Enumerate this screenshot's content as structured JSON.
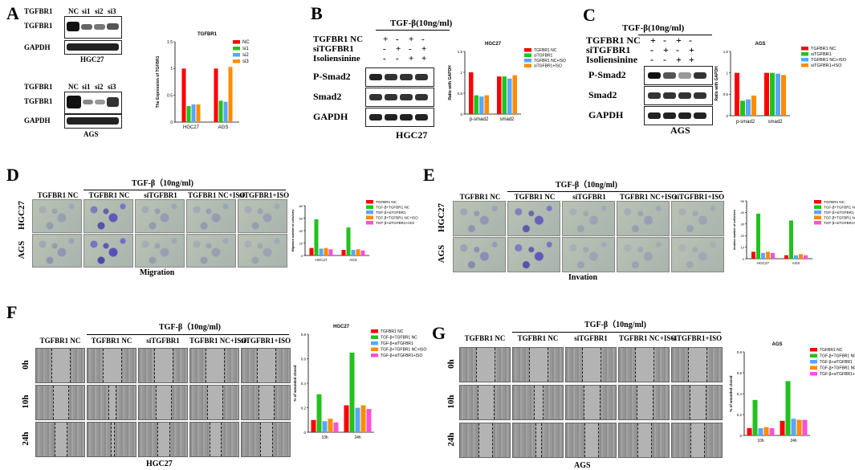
{
  "panelA": {
    "label": "A",
    "top_header": [
      "TGFBR1",
      "NC",
      "si1",
      "si2",
      "si3"
    ],
    "top_rows": [
      "TGFBR1",
      "GAPDH"
    ],
    "top_cell": "HGC27",
    "bottom_header": [
      "TGFBR1",
      "NC",
      "si1",
      "si2",
      "si3"
    ],
    "bottom_rows": [
      "TGFBR1",
      "GAPDH"
    ],
    "bottom_cell": "AGS"
  },
  "panelB": {
    "label": "B",
    "treatment": "TGF-β(10ng/ml)",
    "cond_rows": [
      {
        "label": "TGFBR1 NC",
        "marks": [
          "+",
          "-",
          "+",
          "-"
        ]
      },
      {
        "label": "siTGFBR1",
        "marks": [
          "-",
          "+",
          "-",
          "+"
        ]
      },
      {
        "label": "Isoliensinine",
        "marks": [
          "-",
          "-",
          "+",
          "+"
        ]
      }
    ],
    "blot_rows": [
      "P-Smad2",
      "Smad2",
      "GAPDH"
    ],
    "cell": "HGC27"
  },
  "panelC": {
    "label": "C",
    "treatment": "TGF-β(10ng/ml)",
    "cond_rows": [
      {
        "label": "TGFBR1 NC",
        "marks": [
          "+",
          "-",
          "+",
          "-"
        ]
      },
      {
        "label": "siTGFBR1",
        "marks": [
          "-",
          "+",
          "-",
          "+"
        ]
      },
      {
        "label": "Isoliensinine",
        "marks": [
          "-",
          "-",
          "+",
          "+"
        ]
      }
    ],
    "blot_rows": [
      "P-Smad2",
      "Smad2",
      "GAPDH"
    ],
    "cell": "AGS"
  },
  "panelD": {
    "label": "D",
    "treatment": "TGF-β（10ng/ml)",
    "columns": [
      "TGFBR1 NC",
      "TGFBR1 NC",
      "siTGFBR1",
      "TGFBR1 NC+ISO",
      "siTGFBR1+ISO"
    ],
    "rows": [
      "HGC27",
      "AGS"
    ],
    "caption": "Migration"
  },
  "panelE": {
    "label": "E",
    "treatment": "TGF-β（10ng/ml)",
    "columns": [
      "TGFBR1 NC",
      "TGFBR1 NC",
      "siTGFBR1",
      "TGFBR1 NC+ISO",
      "siTGFBR1+ISO"
    ],
    "rows": [
      "HGC27",
      "AGS"
    ],
    "caption": "Invation"
  },
  "panelF": {
    "label": "F",
    "treatment": "TGF-β（10ng/ml)",
    "columns": [
      "TGFBR1 NC",
      "TGFBR1 NC",
      "siTGFBR1",
      "TGFBR1 NC+ISO",
      "siTGFBR1+ISO"
    ],
    "rows": [
      "0h",
      "10h",
      "24h"
    ],
    "caption": "HGC27"
  },
  "panelG": {
    "label": "G",
    "treatment": "TGF-β（10ng/ml)",
    "columns": [
      "TGFBR1 NC",
      "TGFBR1 NC",
      "siTGFBR1",
      "TGFBR1 NC+ISO",
      "siTGFBR1+ISO"
    ],
    "rows": [
      "0h",
      "10h",
      "24h"
    ],
    "caption": "AGS"
  },
  "chart_data": [
    {
      "id": "A",
      "type": "bar",
      "title": "TGFBR1",
      "ylabel": "The Expression of TGFBR1",
      "xlabel": "",
      "ylim": [
        0,
        1.5
      ],
      "yticks": [
        0,
        0.5,
        1.0,
        1.5
      ],
      "categories": [
        "HGC27",
        "AGS"
      ],
      "series": [
        {
          "name": "NC",
          "color": "#ff0000",
          "values": [
            1.0,
            1.0
          ]
        },
        {
          "name": "si1",
          "color": "#22c21e",
          "values": [
            0.3,
            0.4
          ]
        },
        {
          "name": "si2",
          "color": "#5aa5ff",
          "values": [
            0.33,
            0.38
          ]
        },
        {
          "name": "si3",
          "color": "#ff8c00",
          "values": [
            0.33,
            1.03
          ]
        }
      ],
      "annotations": [
        "***",
        "***",
        "***",
        "***",
        "***"
      ],
      "legend": "top-right"
    },
    {
      "id": "B",
      "type": "bar",
      "title": "HGC27",
      "ylabel": "Ratio with GAPDH",
      "xlabel": "",
      "ylim": [
        0,
        1.5
      ],
      "yticks": [
        0.0,
        0.5,
        1.0,
        1.5
      ],
      "categories": [
        "p-smad2",
        "smad2"
      ],
      "series": [
        {
          "name": "TGFBR1 NC",
          "color": "#ff0000",
          "values": [
            1.0,
            0.9
          ]
        },
        {
          "name": "siTGFBR1",
          "color": "#22c21e",
          "values": [
            0.45,
            0.9
          ]
        },
        {
          "name": "TGFBR1 NC+ISO",
          "color": "#5aa5ff",
          "values": [
            0.42,
            0.85
          ]
        },
        {
          "name": "siTGFBR1+ISO",
          "color": "#ff8c00",
          "values": [
            0.45,
            0.93
          ]
        }
      ],
      "annotations": [
        "***",
        "***",
        "***",
        "ns",
        "ns"
      ],
      "legend": "top-right"
    },
    {
      "id": "C",
      "type": "bar",
      "title": "AGS",
      "ylabel": "Ratio with GAPDH",
      "xlabel": "",
      "ylim": [
        0,
        1.5
      ],
      "yticks": [
        0.0,
        0.5,
        1.0,
        1.5
      ],
      "categories": [
        "p-smad2",
        "smad2"
      ],
      "series": [
        {
          "name": "TGFBR1 NC",
          "color": "#ff0000",
          "values": [
            1.0,
            1.0
          ]
        },
        {
          "name": "siTGFBR1",
          "color": "#22c21e",
          "values": [
            0.35,
            1.0
          ]
        },
        {
          "name": "TGFBR1 NC+ISO",
          "color": "#5aa5ff",
          "values": [
            0.38,
            0.98
          ]
        },
        {
          "name": "siTGFBR1+ISO",
          "color": "#ff8c00",
          "values": [
            0.47,
            0.95
          ]
        }
      ],
      "annotations": [
        "***",
        "***",
        "***",
        "ns"
      ],
      "legend": "top-right"
    },
    {
      "id": "D",
      "type": "bar",
      "title": "",
      "ylabel": "Migration number of cells/view",
      "xlabel": "",
      "ylim": [
        0,
        80
      ],
      "yticks": [
        0,
        20,
        40,
        60,
        80
      ],
      "categories": [
        "HGC27",
        "AGS"
      ],
      "series": [
        {
          "name": "TGFBR1 NC",
          "color": "#ff0000",
          "values": [
            12,
            9
          ]
        },
        {
          "name": "TGF-β+TGFBR1 NC",
          "color": "#22c21e",
          "values": [
            58,
            45
          ]
        },
        {
          "name": "TGF-β+siTGFBR1",
          "color": "#5aa5ff",
          "values": [
            11,
            9
          ]
        },
        {
          "name": "TGF-β+TGFBR1 NC+ISO",
          "color": "#ff8c00",
          "values": [
            12,
            10
          ]
        },
        {
          "name": "TGF-β+siTGFBR1+ISO",
          "color": "#ff4fd8",
          "values": [
            10,
            8
          ]
        }
      ],
      "annotations": [
        "###",
        "###",
        "***",
        "***",
        "***",
        "ns",
        "ns"
      ],
      "legend": "top-right"
    },
    {
      "id": "E",
      "type": "bar",
      "title": "",
      "ylabel": "Invation number of cells/view",
      "xlabel": "",
      "ylim": [
        0,
        50
      ],
      "yticks": [
        0,
        10,
        20,
        30,
        40,
        50
      ],
      "categories": [
        "HGC27",
        "AGS"
      ],
      "series": [
        {
          "name": "TGFBR1 NC",
          "color": "#ff0000",
          "values": [
            6,
            3
          ]
        },
        {
          "name": "TGF-β+TGFBR1 NC",
          "color": "#22c21e",
          "values": [
            39,
            33
          ]
        },
        {
          "name": "TGF-β+siTGFBR1",
          "color": "#5aa5ff",
          "values": [
            5,
            3
          ]
        },
        {
          "name": "TGF-β+TGFBR1 NC+ISO",
          "color": "#ff8c00",
          "values": [
            6,
            4
          ]
        },
        {
          "name": "TGF-β+siTGFBR1+ISO",
          "color": "#ff4fd8",
          "values": [
            5,
            3
          ]
        }
      ],
      "annotations": [
        "###",
        "###",
        "***",
        "***",
        "***",
        "ns",
        "ns"
      ],
      "legend": "top-right"
    },
    {
      "id": "F",
      "type": "bar",
      "title": "HGC27",
      "ylabel": "% of wounded closed",
      "xlabel": "",
      "ylim": [
        0,
        0.8
      ],
      "yticks": [
        0.0,
        0.2,
        0.4,
        0.6,
        0.8
      ],
      "categories": [
        "10h",
        "24h"
      ],
      "series": [
        {
          "name": "TGFBR1 NC",
          "color": "#ff0000",
          "values": [
            0.1,
            0.22
          ]
        },
        {
          "name": "TGF-β+TGFBR1 NC",
          "color": "#22c21e",
          "values": [
            0.31,
            0.65
          ]
        },
        {
          "name": "TGF-β+siTGFBR1",
          "color": "#5aa5ff",
          "values": [
            0.09,
            0.2
          ]
        },
        {
          "name": "TGF-β+TGFBR1 NC+ISO",
          "color": "#ff8c00",
          "values": [
            0.11,
            0.22
          ]
        },
        {
          "name": "TGF-β+siTGFBR1+ISO",
          "color": "#ff4fd8",
          "values": [
            0.08,
            0.19
          ]
        }
      ],
      "annotations": [
        "###",
        "###",
        "***",
        "***",
        "***",
        "ns",
        "ns"
      ],
      "legend": "top-right"
    },
    {
      "id": "G",
      "type": "bar",
      "title": "AGS",
      "ylabel": "% of wounded closed",
      "xlabel": "",
      "ylim": [
        0,
        0.8
      ],
      "yticks": [
        0.0,
        0.2,
        0.4,
        0.6,
        0.8
      ],
      "categories": [
        "10h",
        "24h"
      ],
      "series": [
        {
          "name": "TGFBR1 NC",
          "color": "#ff0000",
          "values": [
            0.07,
            0.14
          ]
        },
        {
          "name": "TGF-β+TGFBR1 NC",
          "color": "#22c21e",
          "values": [
            0.34,
            0.52
          ]
        },
        {
          "name": "TGF-β+siTGFBR1",
          "color": "#5aa5ff",
          "values": [
            0.07,
            0.16
          ]
        },
        {
          "name": "TGF-β+TGFBR1 NC+ISO",
          "color": "#ff8c00",
          "values": [
            0.08,
            0.15
          ]
        },
        {
          "name": "TGF-β+siTGFBR1+ISO",
          "color": "#ff4fd8",
          "values": [
            0.07,
            0.15
          ]
        }
      ],
      "annotations": [
        "###",
        "###",
        "***",
        "***",
        "***",
        "ns",
        "ns"
      ],
      "legend": "top-right"
    }
  ]
}
